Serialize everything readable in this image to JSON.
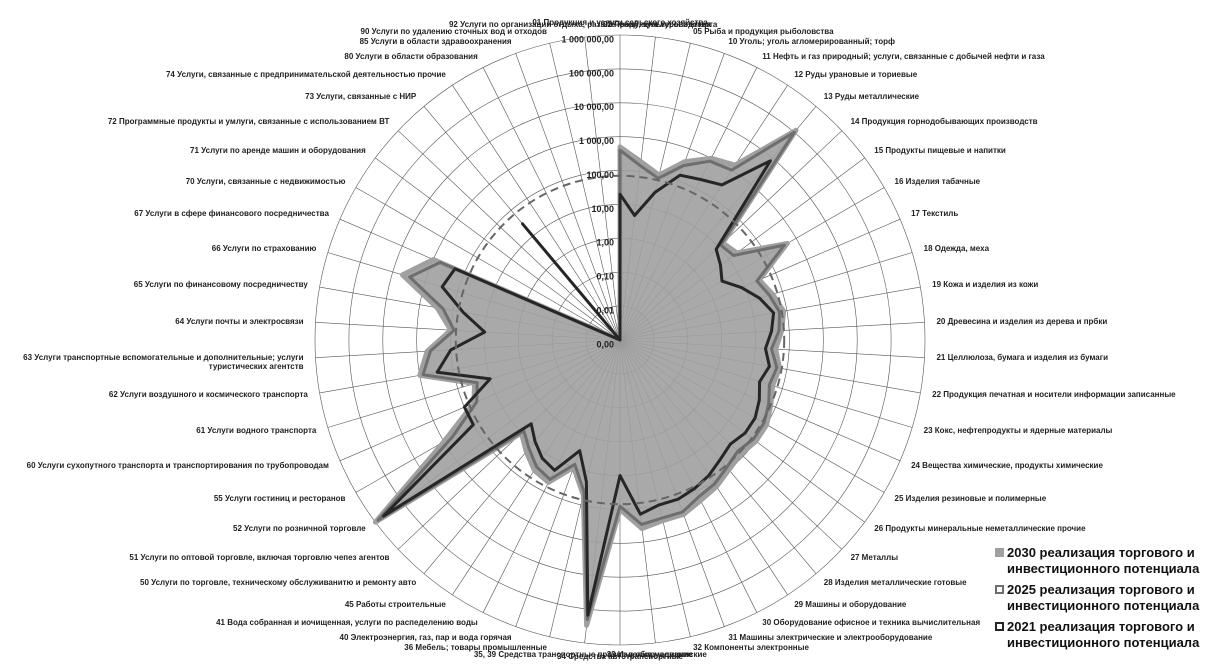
{
  "chart_data": {
    "type": "radar",
    "log_scale": true,
    "categories": [
      "01 Продукция и услуги сельского хозяйства",
      "02 Продукция лесоводства",
      "05 Рыба и продукция рыболовства",
      "10 Уголь; уголь агломерированный; торф",
      "11 Нефть и газ природный; услуги, связанные с добычей нефти и газа",
      "12 Руды урановые и ториевые",
      "13 Руды металлические",
      "14 Продукция горнодобывающих производств",
      "15 Продукты пищевые и напитки",
      "16 Изделия табачные",
      "17 Текстиль",
      "18 Одежда, меха",
      "19 Кожа и изделия из кожи",
      "20 Древесина и изделия из дерева и прбки",
      "21 Целлюлоза, бумага и изделия из бумаги",
      "22 Продукция печатная и носители информации записанные",
      "23 Кокс, нефтепродукты и ядерные материалы",
      "24 Вещества химические, продукты химические",
      "25 Изделия резиновые и полимерные",
      "26 Продукты минеральные неметаллические прочие",
      "27 Металлы",
      "28 Изделия металлические готовые",
      "29 Машины и оборудование",
      "30 Оборудование офисное и техника вычислительная",
      "31 Машины электрические и электрооборудование",
      "32 Компоненты электронные",
      "33 Изделия медицинские",
      "34 Средства автотранспортные",
      "35, 39 Средства транспортные прочие и оборудование",
      "36 Мебель; товары промышленные",
      "40 Электроэнергия, газ, пар и вода горячая",
      "41 Вода собранная и иочищенная, услуги по распеделению воды",
      "45 Работы строительные",
      "50 Услуги по торговле, техническому обслуживанитю и ремонту авто",
      "51 Услуги по оптовой торговле, включая торговлю чепез агентов",
      "52 Услуги по розничной торговле",
      "55 Услуги гостиниц и ресторанов",
      "60 Услуги сухопутного транспорта и транспортирования по трубопроводам",
      "61 Услуги водного транспорта",
      "62 Услуги воздушного и космического транспорта",
      "63 Услуги транспортные вспомогательные и дополнительные; услуги туристических агентств",
      "64 Услуги почты и электросвязи",
      "65 Услуги по финансовому посредничеству",
      "66 Услуги по страхованию",
      "67 Услуги в сфере финансового посредничества",
      "70 Услуги, связанные с недвижимостью",
      "71 Услуги по аренде машин и оборудования",
      "72 Программные продукты и умлуги, связанные с использованием ВТ",
      "73 Услуги, связанные с НИР",
      "74 Услуги, связанные с предпринимательской деятельностью прочие",
      "80 Услуги в области образования",
      "85 Услуги в области здравоохранения",
      "90 Услуги по удалению сточных вод и отходов",
      "92 Услуги по организации отдыха, развлечений, культуры и спорта"
    ],
    "series": [
      {
        "name": "2030 реализация торгового и инвестиционного потенциала",
        "color": "#a0a0a0",
        "filled": true,
        "values": [
          500,
          200,
          100,
          400,
          1000,
          1500,
          120000,
          15,
          20,
          500,
          30,
          50,
          80,
          60,
          40,
          60,
          50,
          70,
          100,
          100,
          80,
          100,
          150,
          200,
          300,
          300,
          400,
          100,
          300000,
          50,
          10,
          50,
          40,
          20,
          10,
          1000000,
          1000,
          50,
          30,
          1000,
          500,
          100,
          300,
          5000,
          1000,
          0.001,
          0.001,
          0.001,
          0.001,
          0.001,
          0.001,
          0.001,
          0.001,
          0.001
        ]
      },
      {
        "name": "2025 реализация торгового и инвестиционного потенциала",
        "color": "#6e6e6e",
        "filled": false,
        "values": [
          400,
          150,
          80,
          300,
          800,
          1000,
          100000,
          12,
          15,
          400,
          25,
          40,
          60,
          50,
          30,
          50,
          40,
          60,
          80,
          80,
          60,
          80,
          120,
          150,
          250,
          250,
          300,
          80,
          200000,
          40,
          8,
          40,
          30,
          15,
          8,
          800000,
          500,
          40,
          25,
          800,
          400,
          80,
          200,
          3000,
          600,
          0.001,
          0.001,
          0.001,
          0.001,
          0.001,
          0.001,
          0.001,
          0.001,
          0.001
        ]
      },
      {
        "name": "2021 реализация торгового и инвестиционного потенциала",
        "color": "#262626",
        "filled": false,
        "values": [
          20,
          5,
          30,
          150,
          200,
          300,
          8000,
          8,
          5,
          3,
          8,
          20,
          40,
          30,
          20,
          30,
          20,
          30,
          40,
          40,
          30,
          40,
          60,
          80,
          100,
          100,
          150,
          10,
          150000,
          20,
          3,
          20,
          15,
          8,
          4,
          500000,
          100,
          100,
          10,
          300,
          100,
          10,
          50,
          300,
          200,
          0.001,
          0.001,
          0.001,
          30,
          0.001,
          0.001,
          0.001,
          0.001,
          0.001
        ]
      }
    ],
    "reference_value": 70,
    "ylim": [
      0.001,
      1000000
    ],
    "yticks": [
      {
        "value": 0.001,
        "label": "0,00"
      },
      {
        "value": 0.01,
        "label": "0,01"
      },
      {
        "value": 0.1,
        "label": "0,10"
      },
      {
        "value": 1,
        "label": "1,00"
      },
      {
        "value": 10,
        "label": "10,00"
      },
      {
        "value": 100,
        "label": "100,00"
      },
      {
        "value": 1000,
        "label": "1 000,00"
      },
      {
        "value": 10000,
        "label": "10 000,00"
      },
      {
        "value": 100000,
        "label": "100 000,00"
      },
      {
        "value": 1000000,
        "label": "1 000 000,00"
      }
    ],
    "grid": true
  }
}
